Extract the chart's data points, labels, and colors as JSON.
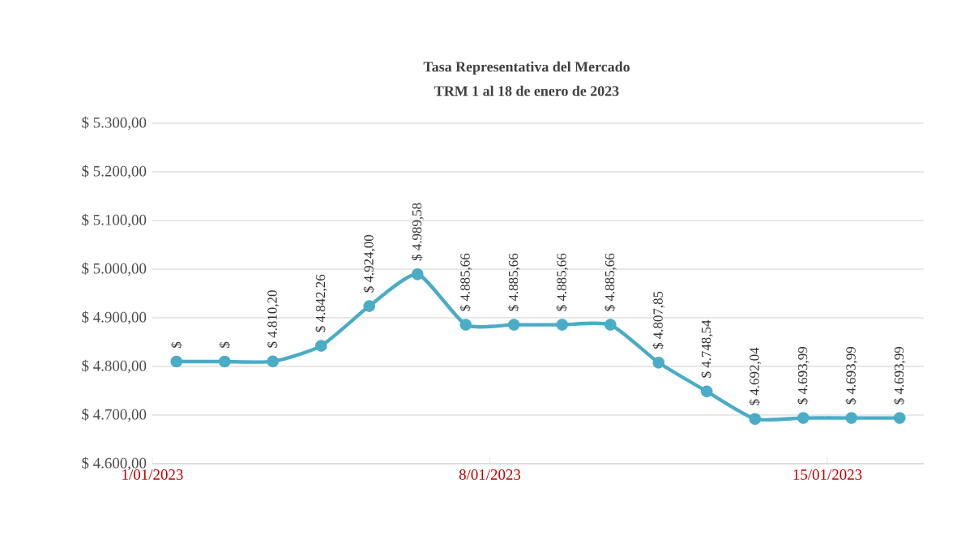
{
  "chart_data": {
    "type": "line",
    "title": "Tasa Representativa del Mercado",
    "subtitle": "TRM 1 al 18 de enero de 2023",
    "x": [
      "2023-01-01T12:00",
      "2023-01-02T12:00",
      "2023-01-03T12:00",
      "2023-01-04T12:00",
      "2023-01-05T12:00",
      "2023-01-06T12:00",
      "2023-01-07T12:00",
      "2023-01-08T12:00",
      "2023-01-09T12:00",
      "2023-01-10T12:00",
      "2023-01-11T12:00",
      "2023-01-12T12:00",
      "2023-01-13T12:00",
      "2023-01-14T12:00",
      "2023-01-15T12:00",
      "2023-01-16T12:00"
    ],
    "series": [
      {
        "color": "#4bacc6",
        "values": [
          4810,
          4810,
          4810.2,
          4842.26,
          4924.0,
          4989.58,
          4885.66,
          4885.66,
          4885.66,
          4885.66,
          4807.85,
          4748.54,
          4692.04,
          4693.99,
          4693.99,
          4693.99
        ],
        "value_labels": [
          "$",
          "$",
          "$ 4.810,20",
          "$ 4.842,26",
          "$ 4.924,00",
          "$ 4.989,58",
          "$ 4.885,66",
          "$ 4.885,66",
          "$ 4.885,66",
          "$ 4.885,66",
          "$ 4.807,85",
          "$ 4.748,54",
          "$ 4.692,04",
          "$ 4.693,99",
          "$ 4.693,99",
          "$ 4.693,99"
        ]
      }
    ],
    "xlim": [
      "2023-01-01",
      "2023-01-17"
    ],
    "xticks": [
      {
        "value": "2023-01-01",
        "label": "1/01/2023"
      },
      {
        "value": "2023-01-08",
        "label": "8/01/2023"
      },
      {
        "value": "2023-01-15",
        "label": "15/01/2023"
      }
    ],
    "ylim": [
      4600,
      5300
    ],
    "yticks": [
      {
        "value": 4600,
        "label": "$ 4.600,00"
      },
      {
        "value": 4700,
        "label": "$ 4.700,00"
      },
      {
        "value": 4800,
        "label": "$ 4.800,00"
      },
      {
        "value": 4900,
        "label": "$ 4.900,00"
      },
      {
        "value": 5000,
        "label": "$ 5.000,00"
      },
      {
        "value": 5100,
        "label": "$ 5.100,00"
      },
      {
        "value": 5200,
        "label": "$ 5.200,00"
      },
      {
        "value": 5300,
        "label": "$ 5.300,00"
      }
    ],
    "grid": "y",
    "marker": "circle",
    "line_style": "solid"
  }
}
